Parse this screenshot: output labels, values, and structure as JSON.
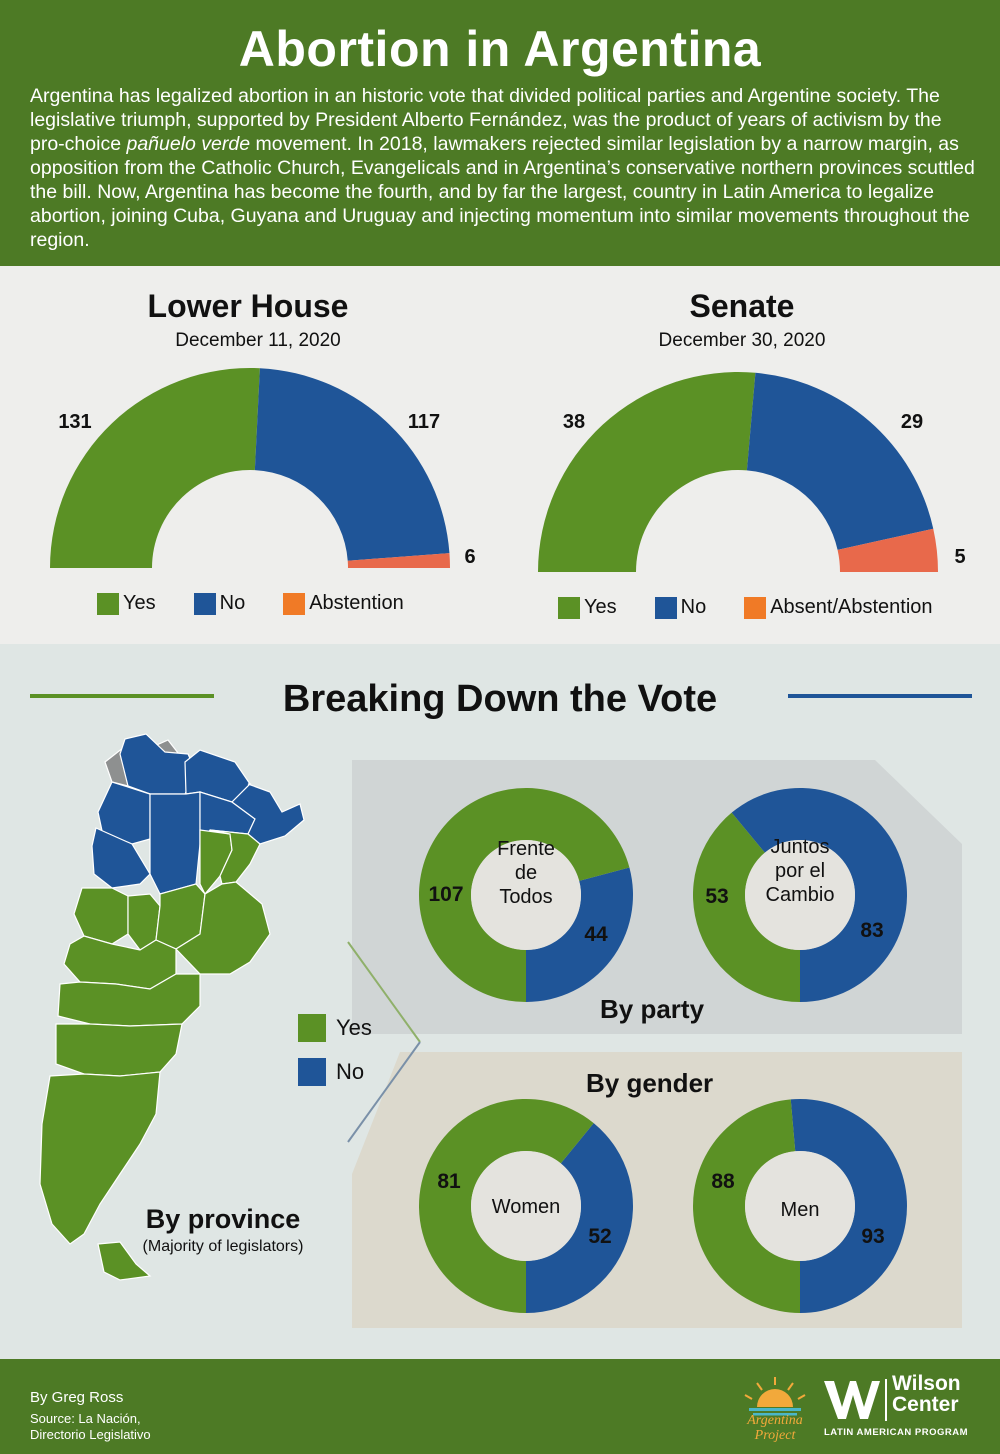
{
  "header": {
    "title": "Abortion in Argentina",
    "intro_part1": "Argentina has legalized abortion in an historic vote that divided political parties and Argentine society. The legislative triumph, supported by President Alberto Fernández, was the product of years of activism by the pro-choice ",
    "intro_italic": "pañuelo verde",
    "intro_part2": " movement. In 2018, lawmakers rejected similar legislation by a narrow margin, as opposition from the Catholic Church, Evangelicals and in Argentina’s conservative northern provinces scuttled the bill. Now, Argentina has become the fourth, and by far the largest, country in Latin America to legalize abortion, joining Cuba, Guyana and Uruguay and injecting momentum into similar movements throughout the region."
  },
  "colors": {
    "yes": "#5b9125",
    "no": "#1f5598",
    "abstention": "#e8694b",
    "legend_abstention": "#f07a26",
    "header_bg": "#4d7a25",
    "panel_party": "#d0d5d5",
    "panel_gender": "#dcd9cd"
  },
  "chart_data": [
    {
      "type": "pie",
      "subtype": "semicircle",
      "title": "Lower House",
      "subtitle": "December 11, 2020",
      "categories": [
        "Yes",
        "No",
        "Abstention"
      ],
      "values": [
        131,
        117,
        6
      ],
      "legend": [
        "Yes",
        "No",
        "Abstention"
      ]
    },
    {
      "type": "pie",
      "subtype": "semicircle",
      "title": "Senate",
      "subtitle": "December 30, 2020",
      "categories": [
        "Yes",
        "No",
        "Absent/Abstention"
      ],
      "values": [
        38,
        29,
        5
      ],
      "legend": [
        "Yes",
        "No",
        "Absent/Abstention"
      ]
    },
    {
      "type": "pie",
      "subtype": "donut",
      "group": "By party",
      "center_label": [
        "Frente",
        "de",
        "Todos"
      ],
      "categories": [
        "Yes",
        "No"
      ],
      "values": [
        107,
        44
      ]
    },
    {
      "type": "pie",
      "subtype": "donut",
      "group": "By party",
      "center_label": [
        "Juntos",
        "por el",
        "Cambio"
      ],
      "categories": [
        "Yes",
        "No"
      ],
      "values": [
        53,
        83
      ]
    },
    {
      "type": "pie",
      "subtype": "donut",
      "group": "By gender",
      "center_label": [
        "Women"
      ],
      "categories": [
        "Yes",
        "No"
      ],
      "values": [
        81,
        52
      ]
    },
    {
      "type": "pie",
      "subtype": "donut",
      "group": "By gender",
      "center_label": [
        "Men"
      ],
      "categories": [
        "Yes",
        "No"
      ],
      "values": [
        88,
        93
      ]
    }
  ],
  "breakdown": {
    "title": "Breaking Down the Vote",
    "by_party": "By party",
    "by_gender": "By gender",
    "by_province": "By province",
    "by_province_note": "(Majority of legislators)",
    "map_legend": [
      "Yes",
      "No"
    ]
  },
  "footer": {
    "byline": "By Greg Ross",
    "source_line1": "Source: La Nación,",
    "source_line2": "Directorio Legislativo",
    "ap_line1": "Argentina",
    "ap_line2": "Project",
    "wc_line1": "Wilson",
    "wc_line2": "Center",
    "wc_program": "LATIN AMERICAN PROGRAM"
  }
}
